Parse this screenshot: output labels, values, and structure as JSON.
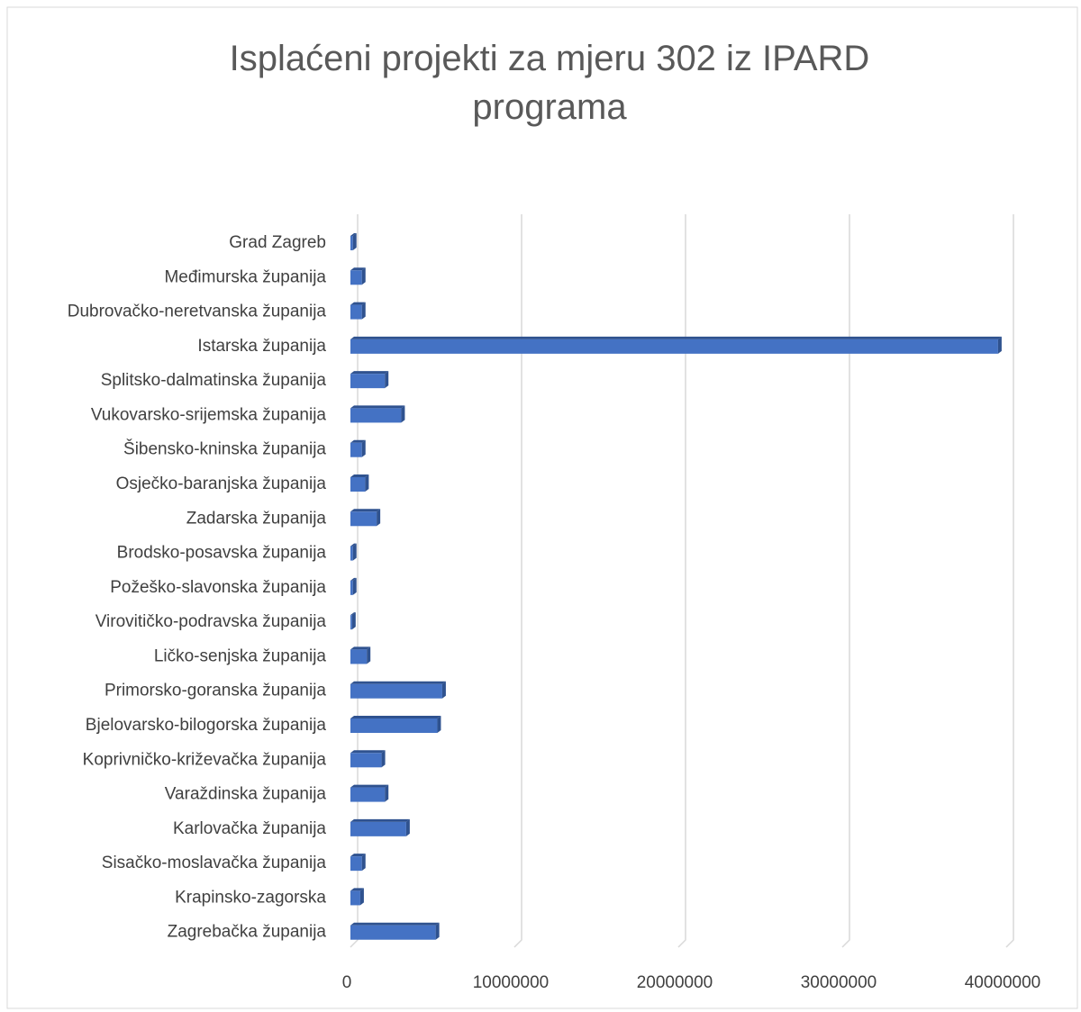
{
  "chart_data": {
    "type": "bar3d-horizontal",
    "title": "Isplaćeni projekti za mjeru 302 iz IPARD programa",
    "categories": [
      "Grad Zagreb",
      "Međimurska županija",
      "Dubrovačko-neretvanska županija",
      "Istarska županija",
      "Splitsko-dalmatinska županija",
      "Vukovarsko-srijemska županija",
      "Šibensko-kninska županija",
      "Osječko-baranjska županija",
      "Zadarska županija",
      "Brodsko-posavska županija",
      "Požeško-slavonska županija",
      "Virovitičko-podravska županija",
      "Ličko-senjska županija",
      "Primorsko-goranska županija",
      "Bjelovarsko-bilogorska županija",
      "Koprivničko-križevačka županija",
      "Varaždinska županija",
      "Karlovačka županija",
      "Sisačko-moslavačka županija",
      "Krapinsko-zagorska",
      "Zagrebačka županija"
    ],
    "values": [
      150000,
      700000,
      700000,
      39500000,
      2100000,
      3100000,
      700000,
      900000,
      1600000,
      150000,
      150000,
      100000,
      1000000,
      5600000,
      5300000,
      1900000,
      2100000,
      3400000,
      700000,
      600000,
      5200000
    ],
    "color": "#4472c4",
    "side_color": "#2f528f",
    "xlim": [
      0,
      40000000
    ],
    "xticks": [
      0,
      10000000,
      20000000,
      30000000,
      40000000
    ],
    "grid": true
  }
}
